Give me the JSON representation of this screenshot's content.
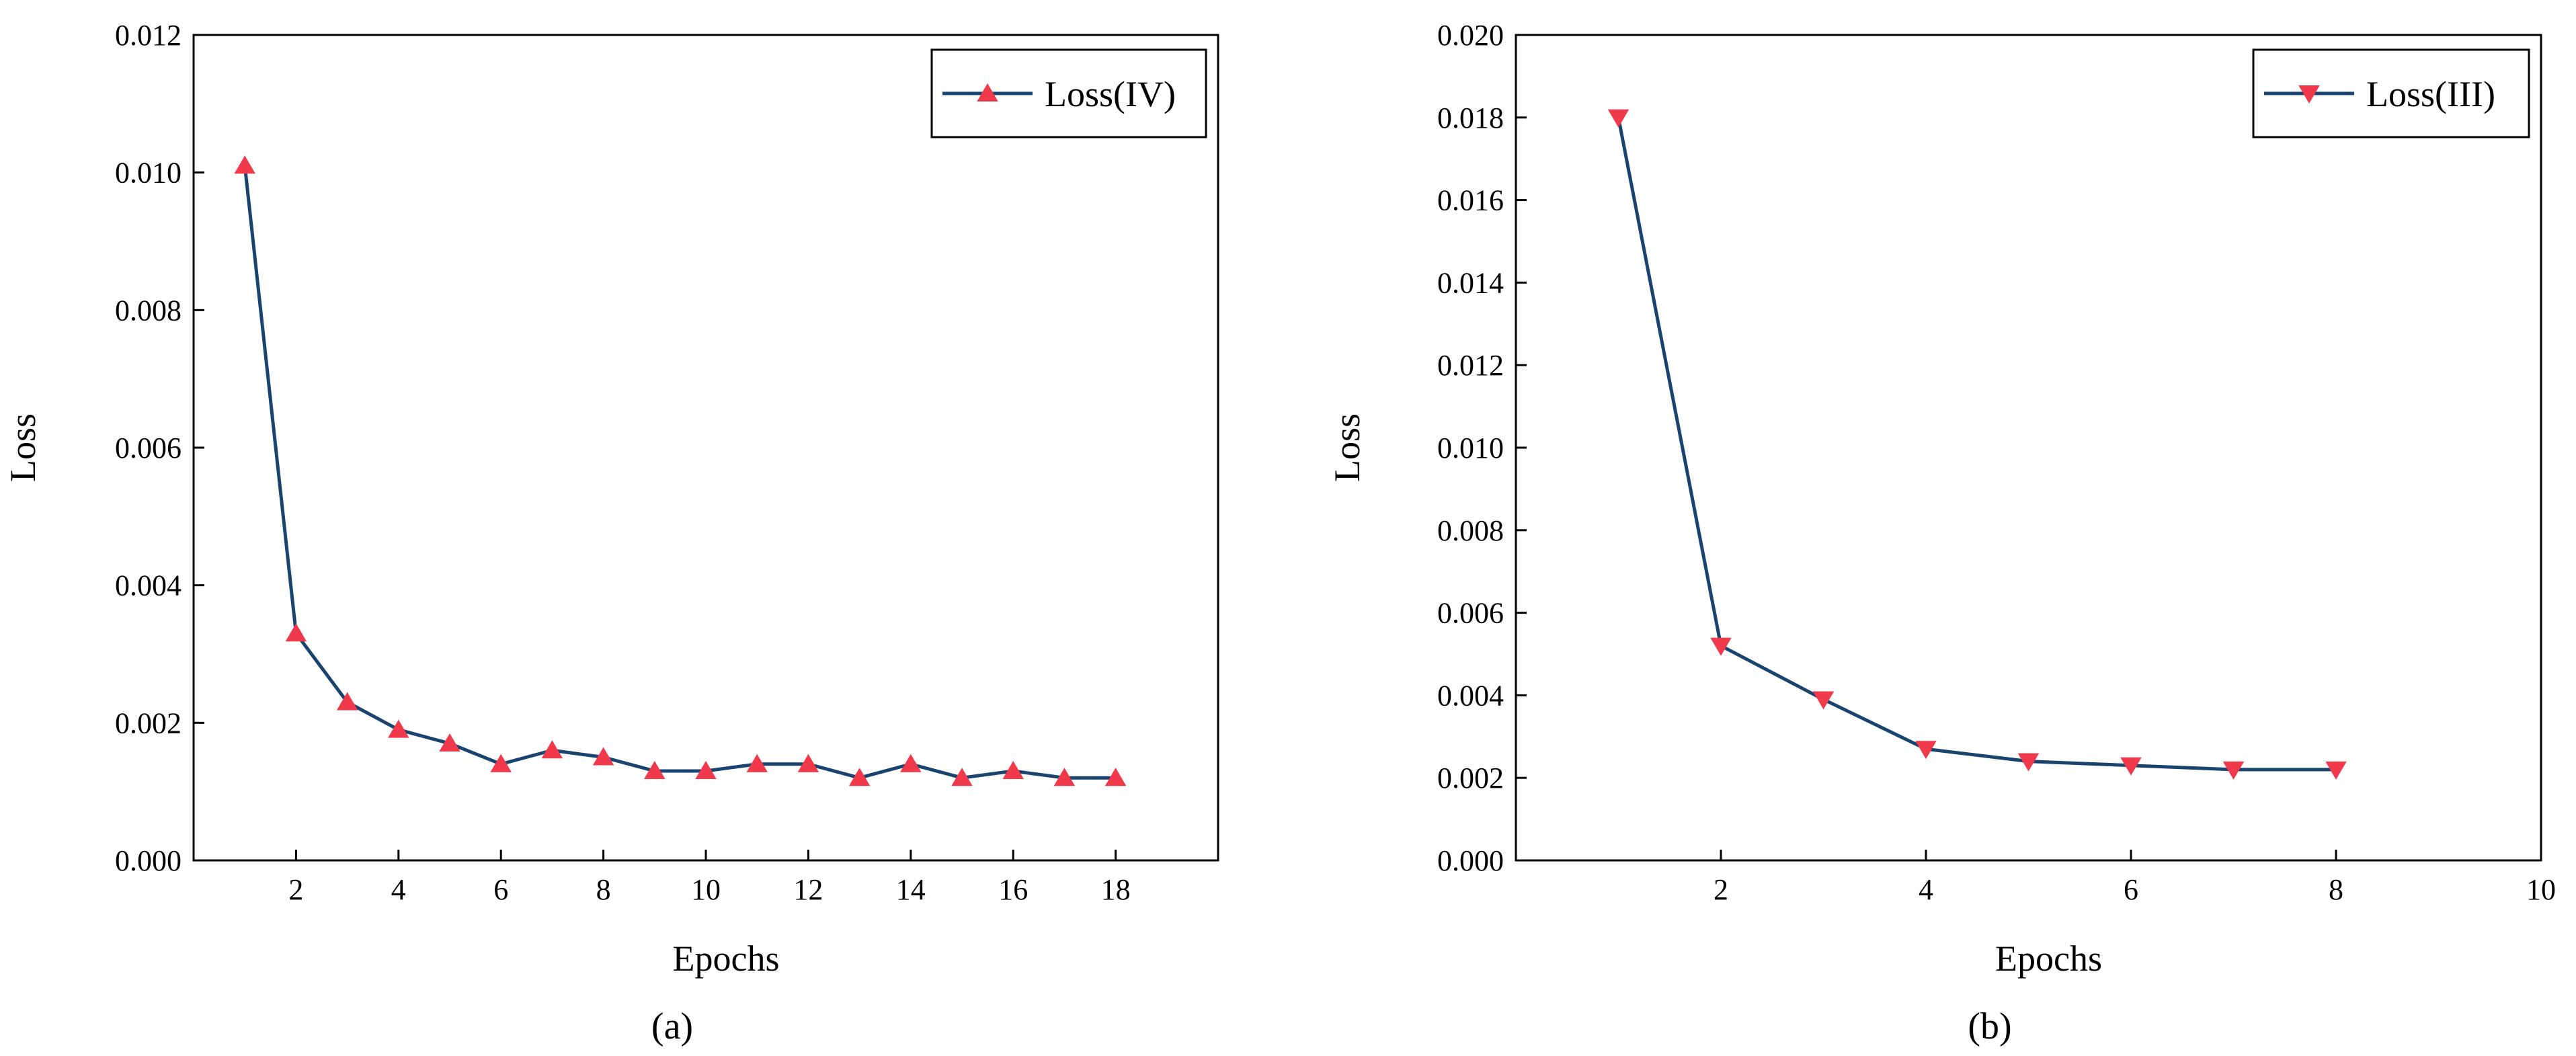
{
  "colors": {
    "line": "#1a4470",
    "marker": "#f03a4b",
    "axis": "#000000"
  },
  "chart_data": [
    {
      "type": "line",
      "caption": "(a)",
      "xlabel": "Epochs",
      "ylabel": "Loss",
      "xlim": [
        0,
        20
      ],
      "ylim": [
        0,
        0.012
      ],
      "xticks": [
        2,
        4,
        6,
        8,
        10,
        12,
        14,
        16,
        18
      ],
      "xtick_labels": [
        "2",
        "4",
        "6",
        "8",
        "10",
        "12",
        "14",
        "16",
        "18"
      ],
      "yticks": [
        0,
        0.002,
        0.004,
        0.006,
        0.008,
        0.01,
        0.012
      ],
      "ytick_labels": [
        "0.000",
        "0.002",
        "0.004",
        "0.006",
        "0.008",
        "0.010",
        "0.012"
      ],
      "legend_position": "top-right",
      "marker": "triangle-up",
      "series": [
        {
          "name": "Loss(IV)",
          "x": [
            1,
            2,
            3,
            4,
            5,
            6,
            7,
            8,
            9,
            10,
            11,
            12,
            13,
            14,
            15,
            16,
            17,
            18
          ],
          "values": [
            0.0101,
            0.0033,
            0.0023,
            0.0019,
            0.0017,
            0.0014,
            0.0016,
            0.0015,
            0.0013,
            0.0013,
            0.0014,
            0.0014,
            0.0012,
            0.0014,
            0.0012,
            0.0013,
            0.0012,
            0.0012
          ]
        }
      ]
    },
    {
      "type": "line",
      "caption": "(b)",
      "xlabel": "Epochs",
      "ylabel": "Loss",
      "xlim": [
        0,
        10
      ],
      "ylim": [
        0,
        0.02
      ],
      "xticks": [
        2,
        4,
        6,
        8,
        10
      ],
      "xtick_labels": [
        "2",
        "4",
        "6",
        "8",
        "10"
      ],
      "yticks": [
        0,
        0.002,
        0.004,
        0.006,
        0.008,
        0.01,
        0.012,
        0.014,
        0.016,
        0.018,
        0.02
      ],
      "ytick_labels": [
        "0.000",
        "0.002",
        "0.004",
        "0.006",
        "0.008",
        "0.010",
        "0.012",
        "0.014",
        "0.016",
        "0.018",
        "0.020"
      ],
      "legend_position": "top-right",
      "marker": "triangle-down",
      "series": [
        {
          "name": "Loss(III)",
          "x": [
            1,
            2,
            3,
            4,
            5,
            6,
            7,
            8
          ],
          "values": [
            0.018,
            0.0052,
            0.0039,
            0.0027,
            0.0024,
            0.0023,
            0.0022,
            0.0022
          ]
        }
      ]
    }
  ]
}
